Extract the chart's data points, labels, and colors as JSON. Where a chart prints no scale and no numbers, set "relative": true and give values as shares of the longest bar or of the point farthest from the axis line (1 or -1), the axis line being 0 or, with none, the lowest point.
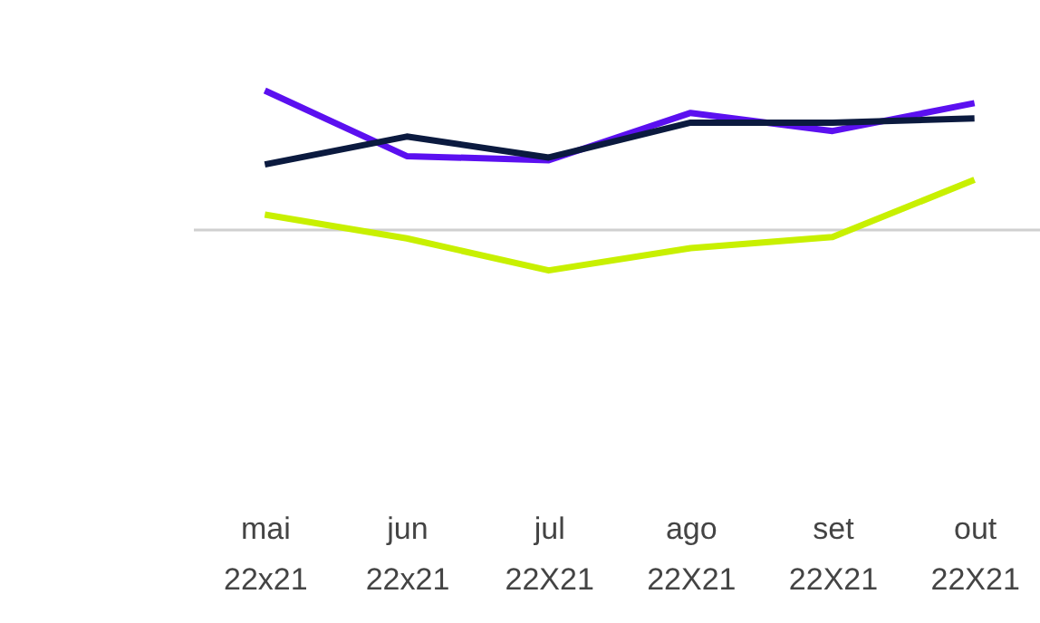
{
  "chart_data": {
    "type": "line",
    "relative": true,
    "categories": [
      "mai 22x21",
      "jun 22x21",
      "jul 22X21",
      "ago 22X21",
      "set 22X21",
      "out 22X21"
    ],
    "series": [
      {
        "color": "#5b10f0",
        "values": [
          1,
          0.53,
          0.5,
          0.84,
          0.71,
          0.91
        ]
      },
      {
        "color": "#0b1a3f",
        "values": [
          0.47,
          0.67,
          0.52,
          0.77,
          0.77,
          0.8
        ]
      },
      {
        "color": "#c8f000",
        "values": [
          0.11,
          -0.06,
          -0.29,
          -0.13,
          -0.05,
          0.36
        ]
      }
    ]
  }
}
